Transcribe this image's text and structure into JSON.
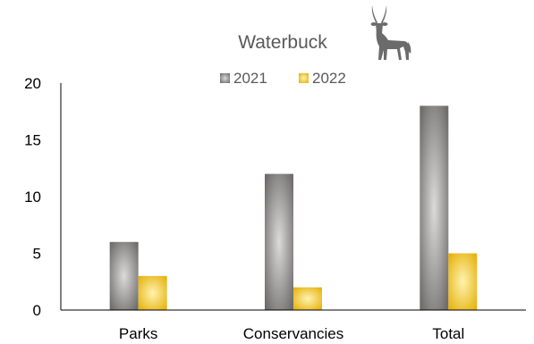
{
  "chart_data": {
    "type": "bar",
    "title": "Waterbuck",
    "categories": [
      "Parks",
      "Conservancies",
      "Total"
    ],
    "series": [
      {
        "name": "2021",
        "values": [
          6,
          12,
          18
        ],
        "color": "#8c8a89"
      },
      {
        "name": "2022",
        "values": [
          3,
          2,
          5
        ],
        "color": "#f2c21c"
      }
    ],
    "ylim": [
      0,
      20
    ],
    "yticks": [
      0,
      5,
      10,
      15,
      20
    ],
    "xlabel": "",
    "ylabel": "",
    "grid": false,
    "legend": "top-center",
    "title_icon": "waterbuck-silhouette-icon"
  }
}
